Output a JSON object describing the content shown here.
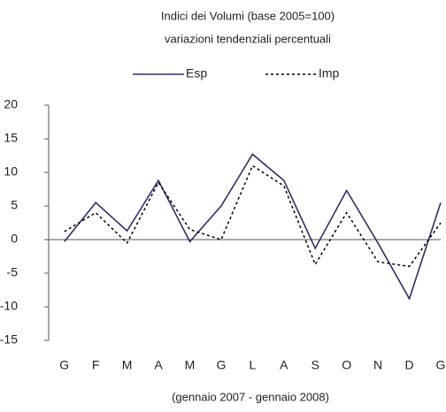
{
  "chart_data": {
    "type": "line",
    "title": "Indici dei Volumi (base 2005=100)",
    "subtitle": "variazioni tendenziali percentuali",
    "x_label": "(gennaio 2007 - gennaio 2008)",
    "categories": [
      "G",
      "F",
      "M",
      "A",
      "M",
      "G",
      "L",
      "A",
      "S",
      "O",
      "N",
      "D",
      "G"
    ],
    "series": [
      {
        "name": "Esp",
        "color": "#2e2e6e",
        "dash": false,
        "values": [
          -0.3,
          5.5,
          1.3,
          8.8,
          -0.3,
          5,
          12.7,
          8.8,
          -1.3,
          7.3,
          -0.5,
          -8.8,
          5.5
        ]
      },
      {
        "name": "Imp",
        "color": "#000000",
        "dash": true,
        "values": [
          1.2,
          4,
          -0.5,
          8.5,
          1.5,
          0,
          11,
          8,
          -3.7,
          4,
          -3.3,
          -4,
          2.5
        ]
      }
    ],
    "ylim": [
      -15,
      20
    ],
    "yticks": [
      -15,
      -10,
      -5,
      0,
      5,
      10,
      15,
      20
    ],
    "grid": false,
    "legend": "top"
  }
}
